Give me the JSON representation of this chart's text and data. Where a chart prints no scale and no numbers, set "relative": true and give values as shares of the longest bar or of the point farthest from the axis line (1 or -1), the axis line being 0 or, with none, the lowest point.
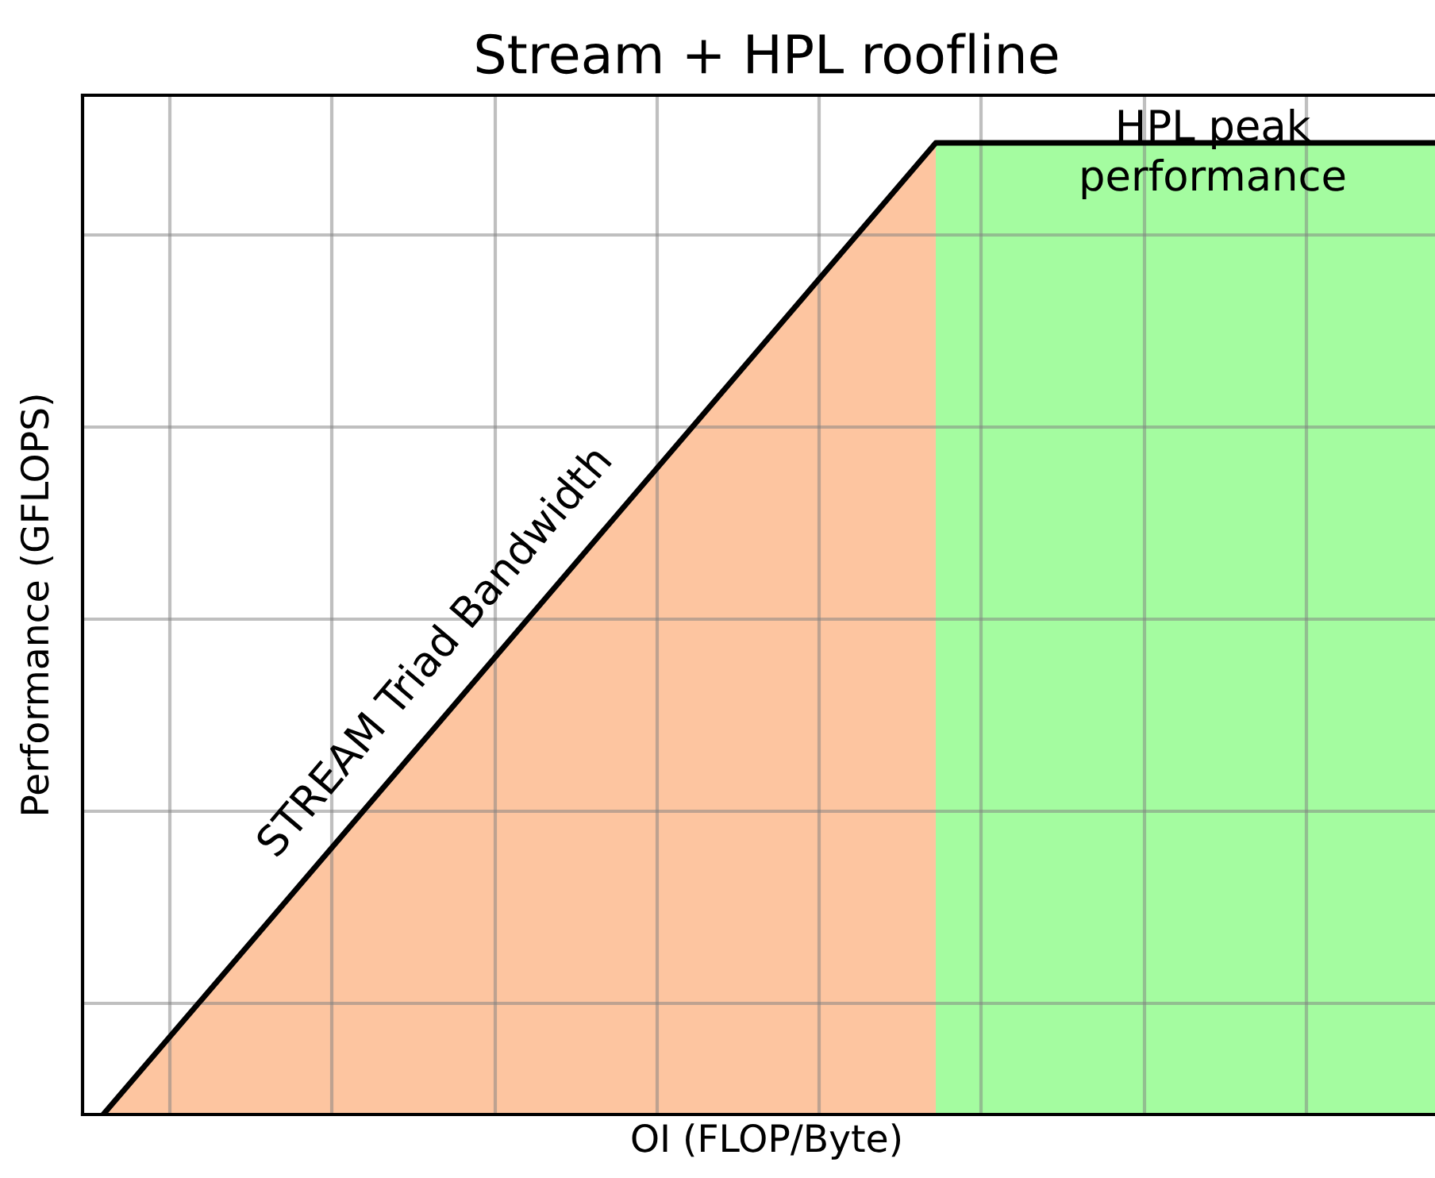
{
  "chart_data": {
    "type": "area",
    "title": "Stream + HPL roofline",
    "xlabel": "OI (FLOP/Byte)",
    "ylabel": "Performance (GFLOPS)",
    "categories": [
      null,
      null,
      null,
      null,
      null,
      null,
      null,
      null,
      null
    ],
    "relative": true,
    "grid": true,
    "tick_labels": false,
    "series": [
      {
        "color": "#fdc5a0",
        "values": [
          0,
          0.2,
          0.4,
          0.6,
          0.8,
          1,
          null,
          null,
          null
        ]
      },
      {
        "color": "#a4fca0",
        "values": [
          null,
          null,
          null,
          null,
          null,
          1,
          1,
          1,
          1
        ]
      },
      {
        "type": "line",
        "color": "#000000",
        "values": [
          0,
          0.2,
          0.4,
          0.6,
          0.8,
          1,
          1,
          1,
          1
        ]
      }
    ],
    "annotations": [
      "STREAM Triad Bandwidth",
      "HPL peak\nperformance"
    ]
  }
}
